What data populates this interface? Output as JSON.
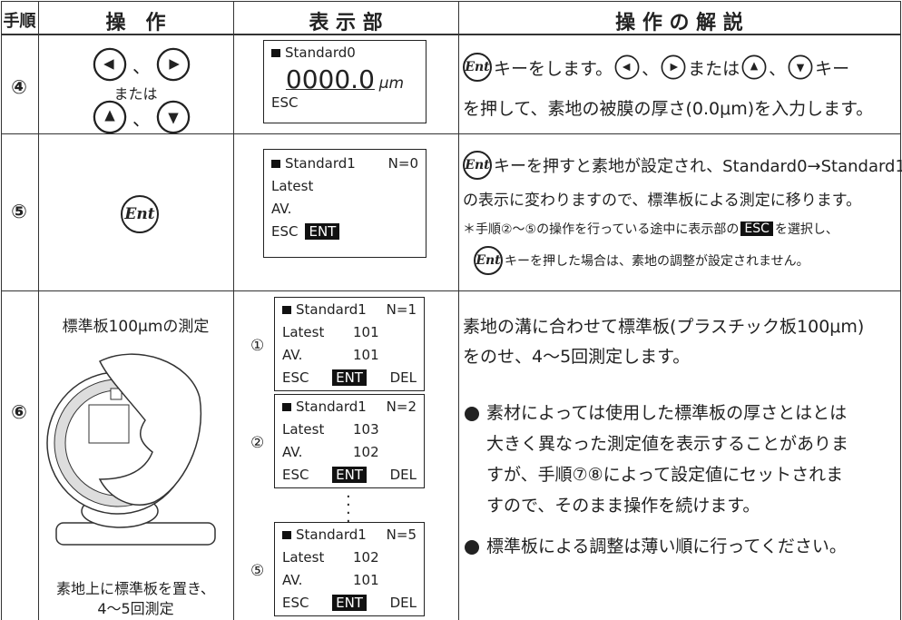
{
  "table": {
    "headers": [
      "手順",
      "操　作",
      "表 示 部",
      "操 作 の 解 説"
    ],
    "key_label": "Ent",
    "rows": [
      {
        "step": "④",
        "operation": {
          "sep1": "、",
          "or": "または",
          "sep2": "、"
        },
        "display": {
          "title": "Standard0",
          "value": "0000.0",
          "unit": "μm",
          "esc": "ESC"
        },
        "explanation": {
          "line1": [
            "キーをします。",
            "、",
            "または",
            "、",
            "キー"
          ],
          "line2": "を押して、素地の被膜の厚さ(0.0μm)を入力します。"
        }
      },
      {
        "step": "⑤",
        "display": {
          "title": "Standard1",
          "n": "N=0",
          "latest": "Latest",
          "av": "AV.",
          "esc": "ESC",
          "ent": "ENT"
        },
        "explanation": {
          "line1": "キーを押すと素地が設定され、Standard0→Standard1",
          "line2": "の表示に変わりますので、標準板による測定に移ります。",
          "note1": [
            "＊手順②〜⑤の操作を行っている途中に表示部の",
            "ESC",
            "を選択し、"
          ],
          "note2": "キーを押した場合は、素地の調整が設定されません。"
        }
      },
      {
        "step": "⑥",
        "operation": {
          "caption": "標準板100μmの測定",
          "footer": [
            "素地上に標準板を置き、",
            "4〜5回測定"
          ]
        },
        "displays": [
          {
            "marker": "①",
            "title": "Standard1",
            "n": "N=1",
            "latest": "Latest",
            "latest_value": "101",
            "av": "AV.",
            "av_value": "101",
            "esc": "ESC",
            "ent": "ENT",
            "del": "DEL"
          },
          {
            "marker": "②",
            "title": "Standard1",
            "n": "N=2",
            "latest": "Latest",
            "latest_value": "103",
            "av": "AV.",
            "av_value": "102",
            "esc": "ESC",
            "ent": "ENT",
            "del": "DEL"
          },
          {
            "marker": "⑤",
            "title": "Standard1",
            "n": "N=5",
            "latest": "Latest",
            "latest_value": "102",
            "av": "AV.",
            "av_value": "101",
            "esc": "ESC",
            "ent": "ENT",
            "del": "DEL"
          }
        ],
        "explanation": {
          "paragraph": [
            "素地の溝に合わせて標準板(プラスチック板100μm)",
            "をのせ、4〜5回測定します。"
          ],
          "bullets": [
            [
              "素材によっては使用した標準板の厚さとはとは",
              "大きく異なった測定値を表示することがありま",
              "すが、手順⑦⑧によって設定値にセットされま",
              "すので、そのまま操作を続けます。"
            ],
            [
              "標準板による調整は薄い順に行ってください。"
            ]
          ]
        }
      }
    ]
  }
}
